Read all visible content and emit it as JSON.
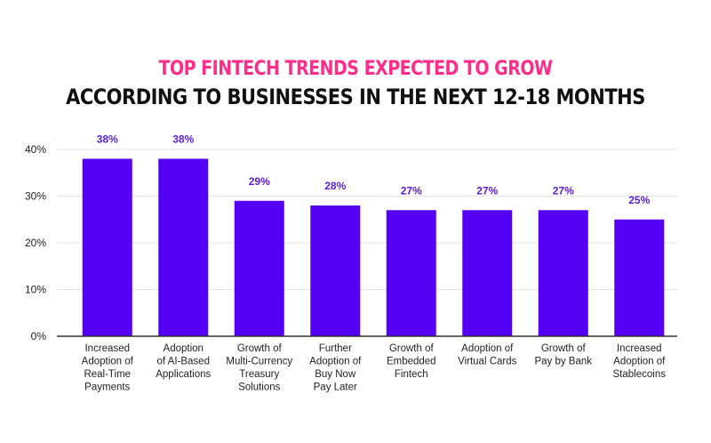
{
  "header": {
    "title_line1": "TOP FINTECH TRENDS EXPECTED TO GROW",
    "title_line2": "ACCORDING TO BUSINESSES IN THE NEXT 12-18 MONTHS"
  },
  "colors": {
    "title_accent": "#ff2d8a",
    "title_main": "#111111",
    "bar": "#5300f5",
    "value_label": "#5a1bd9",
    "grid": "#e3e3e3",
    "axis": "#333333",
    "text": "#222222"
  },
  "chart_data": {
    "type": "bar",
    "title": "TOP FINTECH TRENDS EXPECTED TO GROW ACCORDING TO BUSINESSES IN THE NEXT 12-18 MONTHS",
    "xlabel": "",
    "ylabel": "",
    "ylim": [
      0,
      40
    ],
    "y_ticks": [
      {
        "value": 0,
        "label": "0%"
      },
      {
        "value": 10,
        "label": "10%"
      },
      {
        "value": 20,
        "label": "20%"
      },
      {
        "value": 30,
        "label": "30%"
      },
      {
        "value": 40,
        "label": "40%"
      }
    ],
    "grid": true,
    "legend": "none",
    "categories": [
      [
        "Increased",
        "Adoption of",
        "Real-Time",
        "Payments"
      ],
      [
        "Adoption",
        "of AI-Based",
        "Applications"
      ],
      [
        "Growth of",
        "Multi-Currency",
        "Treasury",
        "Solutions"
      ],
      [
        "Further",
        "Adoption of",
        "Buy Now",
        "Pay Later"
      ],
      [
        "Growth of",
        "Embedded",
        "Fintech"
      ],
      [
        "Adoption of",
        "Virtual Cards"
      ],
      [
        "Growth of",
        "Pay by Bank"
      ],
      [
        "Increased",
        "Adoption of",
        "Stablecoins"
      ]
    ],
    "values": [
      38,
      38,
      29,
      28,
      27,
      27,
      27,
      25
    ],
    "value_labels": [
      "38%",
      "38%",
      "29%",
      "28%",
      "27%",
      "27%",
      "27%",
      "25%"
    ]
  }
}
